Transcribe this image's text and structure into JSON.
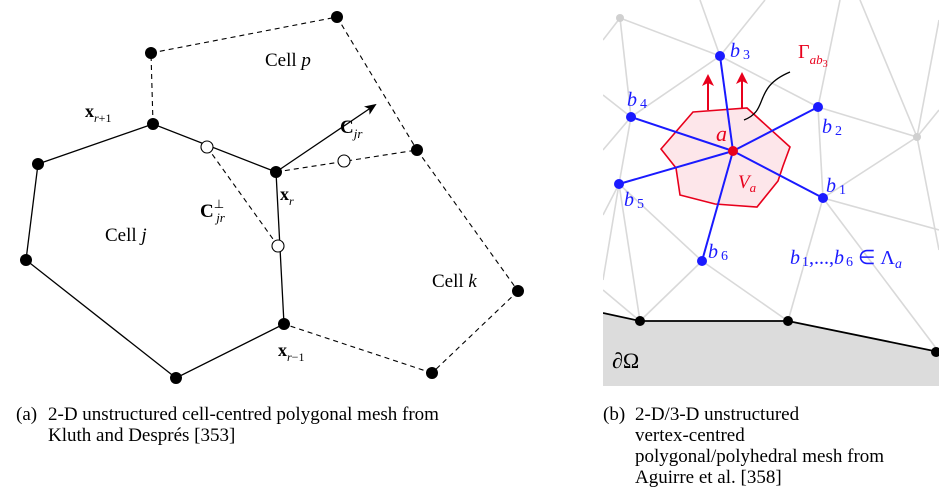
{
  "panel_a": {
    "labels": {
      "cell_p": "Cell p",
      "cell_j": "Cell j",
      "cell_k": "Cell k",
      "x_r_plus_1": "x_{r+1}",
      "x_r": "x_r",
      "x_r_minus_1": "x_{r−1}",
      "c_jr": "C_{jr}",
      "c_jr_perp": "C^⊥_{jr}"
    },
    "caption": {
      "tag": "(a)",
      "lines": [
        "2-D unstructured cell-centred polygonal mesh from",
        "Kluth and Després [353]"
      ]
    }
  },
  "panel_b": {
    "labels": {
      "a": "a",
      "v_a": "V_a",
      "gamma": "Γ_{ab3}",
      "b1": "b 1",
      "b2": "b 2",
      "b3": "b 3",
      "b4": "b 4",
      "b5": "b 5",
      "b6": "b 6",
      "set": "b 1,...,b 6 ∈ Λ_a",
      "boundary": "∂Ω"
    },
    "colors": {
      "edge_blue": "#1a1aff",
      "control_red": "#e8001c",
      "control_fill": "#fde6ea",
      "mesh_gray": "#d9d9d9",
      "boundary_fill": "#dcdcdc"
    },
    "caption": {
      "tag": "(b)",
      "lines": [
        "2-D/3-D unstructured",
        "vertex-centred",
        "polygonal/polyhedral mesh from",
        "Aguirre et al. [358]"
      ]
    }
  }
}
